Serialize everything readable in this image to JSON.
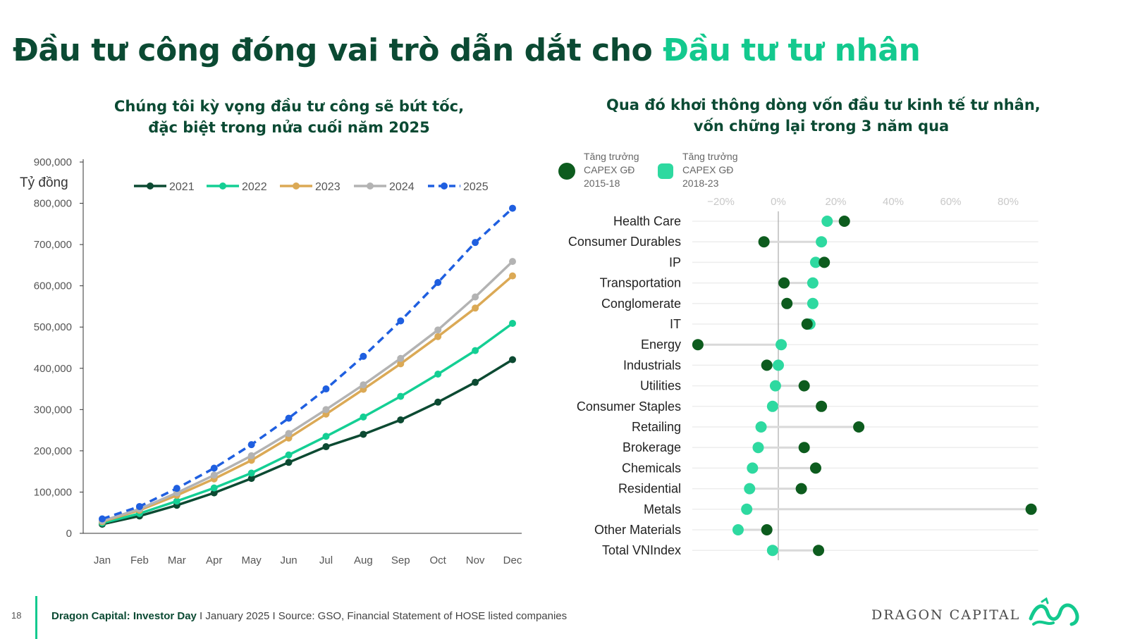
{
  "page": {
    "title_main": "Đầu tư công đóng vai trò dẫn dắt cho",
    "title_accent": "Đầu tư tư nhân",
    "left_subtitle_1": "Chúng tôi kỳ vọng đầu tư công sẽ bứt tốc,",
    "left_subtitle_2": "đặc biệt trong nửa cuối năm 2025",
    "right_subtitle_1": "Qua đó khơi thông dòng vốn đầu tư kinh tế tư nhân,",
    "right_subtitle_2": "vốn chững lại trong 3 năm qua"
  },
  "footer": {
    "page_number": "18",
    "brand": "Dragon Capital: Investor Day",
    "details": " I January 2025 I Source: GSO, Financial Statement of HOSE listed companies",
    "logo_text": "DRAGON CAPITAL"
  },
  "chart_data": [
    {
      "type": "line",
      "ylabel": "Tỷ đồng",
      "categories": [
        "Jan",
        "Feb",
        "Mar",
        "Apr",
        "May",
        "Jun",
        "Jul",
        "Aug",
        "Sep",
        "Oct",
        "Nov",
        "Dec"
      ],
      "ylim": [
        0,
        900000
      ],
      "yticks": [
        0,
        100000,
        200000,
        300000,
        400000,
        500000,
        600000,
        700000,
        800000,
        900000
      ],
      "ytick_labels": [
        "0",
        "100,000",
        "200,000",
        "300,000",
        "400,000",
        "500,000",
        "600,000",
        "700,000",
        "800,000",
        "900,000"
      ],
      "legend_position": "top",
      "grid": false,
      "series": [
        {
          "name": "2021",
          "color": "#0c4a32",
          "dashed": false,
          "values": [
            22000,
            42000,
            68000,
            98000,
            133000,
            172000,
            210000,
            240000,
            275000,
            318000,
            366000,
            421000
          ]
        },
        {
          "name": "2022",
          "color": "#14cf94",
          "dashed": false,
          "values": [
            25000,
            48000,
            78000,
            110000,
            146000,
            190000,
            235000,
            282000,
            332000,
            386000,
            443000,
            509000
          ]
        },
        {
          "name": "2023",
          "color": "#dba955",
          "dashed": false,
          "values": [
            28000,
            56000,
            92000,
            132000,
            177000,
            231000,
            289000,
            349000,
            411000,
            477000,
            546000,
            624000
          ]
        },
        {
          "name": "2024",
          "color": "#b3b3b3",
          "dashed": false,
          "values": [
            30000,
            59000,
            98000,
            141000,
            188000,
            242000,
            300000,
            360000,
            424000,
            493000,
            573000,
            659000
          ]
        },
        {
          "name": "2025",
          "color": "#1f5fe0",
          "dashed": true,
          "values": [
            35000,
            65000,
            109000,
            158000,
            215000,
            279000,
            350000,
            429000,
            515000,
            608000,
            705000,
            788000
          ]
        }
      ]
    },
    {
      "type": "scatter",
      "subtype": "dumbbell",
      "xlim": [
        -20,
        80
      ],
      "xticks": [
        -20,
        0,
        20,
        40,
        60,
        80
      ],
      "xtick_labels": [
        "−20%",
        "0%",
        "20%",
        "40%",
        "60%",
        "80%"
      ],
      "legend_position": "top-left",
      "series": [
        {
          "name": "Tăng trưởng CAPEX GĐ 2015-18",
          "color": "#0d5c1e"
        },
        {
          "name": "Tăng trưởng CAPEX GĐ 2018-23",
          "color": "#2ed9a0"
        }
      ],
      "categories": [
        "Health Care",
        "Consumer Durables",
        "IP",
        "Transportation",
        "Conglomerate",
        "IT",
        "Energy",
        "Industrials",
        "Utilities",
        "Consumer Staples",
        "Retailing",
        "Brokerage",
        "Chemicals",
        "Residential",
        "Metals",
        "Other Materials",
        "Total VNIndex"
      ],
      "values_2015_18": [
        23,
        -5,
        16,
        2,
        3,
        10,
        -28,
        -4,
        9,
        15,
        28,
        9,
        13,
        8,
        88,
        -4,
        14
      ],
      "values_2018_23": [
        17,
        15,
        13,
        12,
        12,
        11,
        1,
        0,
        -1,
        -2,
        -6,
        -7,
        -9,
        -10,
        -11,
        -14,
        -2
      ]
    }
  ]
}
